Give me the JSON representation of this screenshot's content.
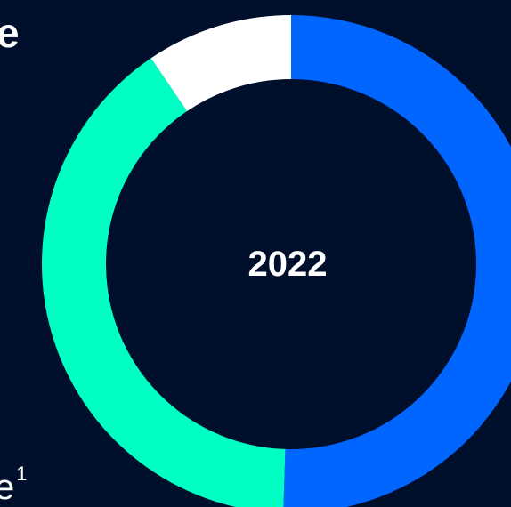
{
  "edge_text": {
    "top_char": "e",
    "bottom_char": "e",
    "bottom_superscript": "1"
  },
  "chart_data": {
    "type": "pie",
    "title": "",
    "center_label": "2022",
    "slices": [
      {
        "value": 50.5,
        "color": "#0066ff"
      },
      {
        "value": 40,
        "color": "#00ffc2"
      },
      {
        "value": 9.5,
        "color": "#ffffff"
      }
    ],
    "donut": true
  },
  "colors": {
    "background": "#000f2b",
    "text": "#ffffff"
  }
}
